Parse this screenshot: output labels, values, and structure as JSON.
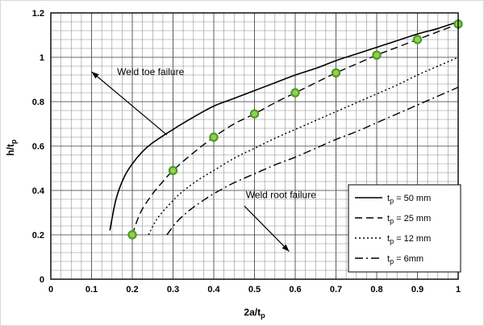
{
  "chart_data": {
    "type": "line",
    "title": "",
    "xlabel": {
      "main": "2a/t",
      "sub": "p"
    },
    "ylabel": {
      "main": "h/t",
      "sub": "p"
    },
    "xlim": [
      0,
      1
    ],
    "ylim": [
      0,
      1.2
    ],
    "xticks": [
      0,
      0.1,
      0.2,
      0.3,
      0.4,
      0.5,
      0.6,
      0.7,
      0.8,
      0.9,
      1
    ],
    "x_tick_labels": [
      "0",
      "0.1",
      "0.2",
      "0.3",
      "0.4",
      "0.5",
      "0.6",
      "0.7",
      "0.8",
      "0.9",
      "1"
    ],
    "yticks": [
      0,
      0.2,
      0.4,
      0.6,
      0.8,
      1,
      1.2
    ],
    "y_tick_labels": [
      "0",
      "0.2",
      "0.4",
      "0.6",
      "0.8",
      "1",
      "1.2"
    ],
    "grid": {
      "on": true,
      "minor_x": 0.025,
      "minor_y": 0.04,
      "minor_color": "#8a8a8a",
      "major_color": "#4d4d4d"
    },
    "axis_color": "#000000",
    "legend_position": "inside-lower-right",
    "series": [
      {
        "id": "tp-50mm",
        "style": "solid",
        "color": "#000000",
        "label": {
          "main": "t",
          "sub": "p",
          "rest": " = 50 mm"
        },
        "points": [
          [
            0.145,
            0.22
          ],
          [
            0.16,
            0.36
          ],
          [
            0.18,
            0.46
          ],
          [
            0.2,
            0.52
          ],
          [
            0.225,
            0.575
          ],
          [
            0.25,
            0.615
          ],
          [
            0.3,
            0.675
          ],
          [
            0.35,
            0.73
          ],
          [
            0.4,
            0.78
          ],
          [
            0.45,
            0.815
          ],
          [
            0.5,
            0.85
          ],
          [
            0.55,
            0.885
          ],
          [
            0.6,
            0.92
          ],
          [
            0.65,
            0.95
          ],
          [
            0.7,
            0.985
          ],
          [
            0.75,
            1.015
          ],
          [
            0.8,
            1.045
          ],
          [
            0.85,
            1.075
          ],
          [
            0.9,
            1.105
          ],
          [
            0.95,
            1.13
          ],
          [
            1.0,
            1.16
          ]
        ]
      },
      {
        "id": "tp-25mm",
        "style": "dashed",
        "color": "#000000",
        "label": {
          "main": "t",
          "sub": "p",
          "rest": " = 25 mm"
        },
        "points": [
          [
            0.2,
            0.2
          ],
          [
            0.22,
            0.3
          ],
          [
            0.25,
            0.385
          ],
          [
            0.275,
            0.44
          ],
          [
            0.3,
            0.49
          ],
          [
            0.35,
            0.57
          ],
          [
            0.4,
            0.64
          ],
          [
            0.45,
            0.7
          ],
          [
            0.5,
            0.745
          ],
          [
            0.55,
            0.795
          ],
          [
            0.6,
            0.84
          ],
          [
            0.65,
            0.885
          ],
          [
            0.7,
            0.93
          ],
          [
            0.75,
            0.97
          ],
          [
            0.8,
            1.01
          ],
          [
            0.85,
            1.045
          ],
          [
            0.9,
            1.08
          ],
          [
            0.95,
            1.115
          ],
          [
            1.0,
            1.15
          ]
        ],
        "marker_points": [
          [
            0.2,
            0.2
          ],
          [
            0.3,
            0.49
          ],
          [
            0.4,
            0.64
          ],
          [
            0.5,
            0.745
          ],
          [
            0.6,
            0.84
          ],
          [
            0.7,
            0.93
          ],
          [
            0.8,
            1.01
          ],
          [
            0.9,
            1.08
          ],
          [
            1.0,
            1.15
          ]
        ],
        "marker": {
          "shape": "circle",
          "fill": "#92d050",
          "stroke": "#4f9a28",
          "radius": 4.6,
          "stroke_width": 2.2
        }
      },
      {
        "id": "tp-12mm",
        "style": "dotted",
        "color": "#000000",
        "label": {
          "main": "t",
          "sub": "p",
          "rest": " = 12 mm"
        },
        "points": [
          [
            0.24,
            0.2
          ],
          [
            0.26,
            0.27
          ],
          [
            0.29,
            0.335
          ],
          [
            0.32,
            0.39
          ],
          [
            0.36,
            0.445
          ],
          [
            0.4,
            0.49
          ],
          [
            0.45,
            0.545
          ],
          [
            0.5,
            0.59
          ],
          [
            0.55,
            0.635
          ],
          [
            0.6,
            0.675
          ],
          [
            0.65,
            0.715
          ],
          [
            0.7,
            0.755
          ],
          [
            0.75,
            0.795
          ],
          [
            0.8,
            0.835
          ],
          [
            0.85,
            0.875
          ],
          [
            0.9,
            0.92
          ],
          [
            0.95,
            0.96
          ],
          [
            1.0,
            1.0
          ]
        ]
      },
      {
        "id": "tp-6mm",
        "style": "dashdot",
        "color": "#000000",
        "label": {
          "main": "t",
          "sub": "p",
          "rest": " = 6mm"
        },
        "points": [
          [
            0.285,
            0.2
          ],
          [
            0.31,
            0.26
          ],
          [
            0.34,
            0.31
          ],
          [
            0.37,
            0.35
          ],
          [
            0.4,
            0.385
          ],
          [
            0.45,
            0.435
          ],
          [
            0.5,
            0.475
          ],
          [
            0.55,
            0.515
          ],
          [
            0.6,
            0.55
          ],
          [
            0.65,
            0.59
          ],
          [
            0.7,
            0.63
          ],
          [
            0.75,
            0.665
          ],
          [
            0.8,
            0.705
          ],
          [
            0.85,
            0.745
          ],
          [
            0.9,
            0.785
          ],
          [
            0.95,
            0.825
          ],
          [
            1.0,
            0.865
          ]
        ]
      }
    ],
    "annotations": [
      {
        "id": "weld-toe-failure",
        "text": "Weld toe failure",
        "x": 0.245,
        "y": 0.935,
        "arrow": {
          "from": [
            0.285,
            0.65
          ],
          "to": [
            0.1,
            0.935
          ]
        }
      },
      {
        "id": "weld-root-failure",
        "text": "Weld root failure",
        "x": 0.565,
        "y": 0.38,
        "arrow": {
          "from": [
            0.475,
            0.33
          ],
          "to": [
            0.585,
            0.125
          ]
        }
      }
    ]
  }
}
